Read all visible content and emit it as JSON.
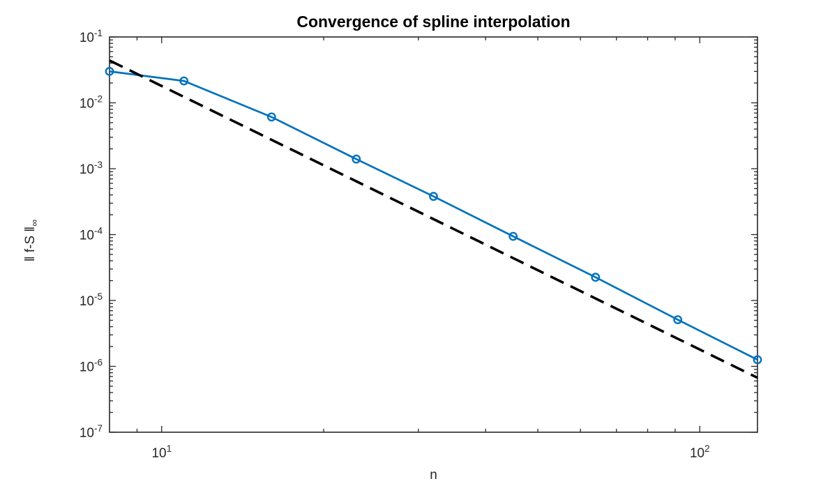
{
  "figure": {
    "title": "Convergence of spline interpolation",
    "xlabel": "n",
    "ylabel_text": "‖ f-S ‖",
    "ylabel_subscript": "∞",
    "background_color": "#ffffff",
    "axis_color": "#262626",
    "tick_label_color": "#262626",
    "title_color": "#000000"
  },
  "chart_data": {
    "type": "line",
    "title": "Convergence of spline interpolation",
    "xlabel": "n",
    "ylabel": "|| f-S ||_inf",
    "x_scale": "log",
    "y_scale": "log",
    "xlim": [
      8,
      128
    ],
    "ylim": [
      1e-07,
      0.1
    ],
    "grid": false,
    "legend_position": "none",
    "box": true,
    "tick_direction": "in",
    "series": [
      {
        "name": "spline-interpolation-error",
        "color": "#0072BD",
        "line_style": "solid",
        "marker": "circle",
        "x": [
          8,
          11,
          16,
          23,
          32,
          45,
          64,
          91,
          128
        ],
        "y": [
          0.03,
          0.0215,
          0.0061,
          0.0014,
          0.00038,
          9.4e-05,
          2.25e-05,
          5.1e-06,
          1.26e-06
        ]
      },
      {
        "name": "n-to-the-minus-4-reference",
        "color": "#000000",
        "line_style": "dashed",
        "marker": "none",
        "x": [
          8,
          128
        ],
        "y": [
          0.044,
          6.7e-07
        ]
      }
    ],
    "x_ticks": {
      "values": [
        10,
        100
      ],
      "exponents": [
        1,
        2
      ],
      "label_base": "10"
    },
    "y_ticks": {
      "values": [
        0.1,
        0.01,
        0.001,
        0.0001,
        1e-05,
        1e-06,
        1e-07
      ],
      "exponents": [
        -1,
        -2,
        -3,
        -4,
        -5,
        -6,
        -7
      ],
      "label_base": "10"
    },
    "x_minor_ticks": [
      9,
      20,
      30,
      40,
      50,
      60,
      70,
      80,
      90
    ]
  }
}
